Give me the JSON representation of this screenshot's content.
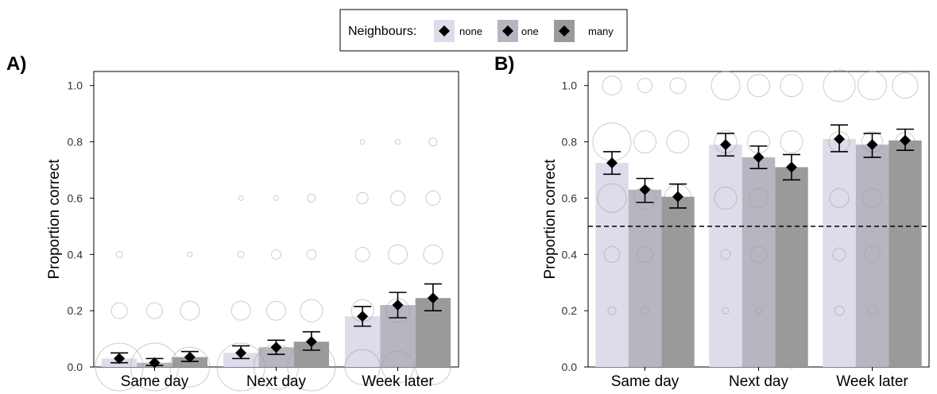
{
  "legend": {
    "title": "Neighbours:",
    "items": [
      {
        "label": "none",
        "color": "#dcdceb"
      },
      {
        "label": "one",
        "color": "#b6b6c0"
      },
      {
        "label": "many",
        "color": "#9a9a9a"
      }
    ]
  },
  "chart_data": [
    {
      "panel_label": "A)",
      "type": "bar",
      "ylabel": "Proportion correct",
      "xlabel": "",
      "ylim": [
        0,
        1.05
      ],
      "yticks": [
        "0.0",
        "0.2",
        "0.4",
        "0.6",
        "0.8",
        "1.0"
      ],
      "ytick_values": [
        0,
        0.2,
        0.4,
        0.6,
        0.8,
        1.0
      ],
      "categories": [
        "Same day",
        "Next day",
        "Week later"
      ],
      "reference_line": null,
      "series": [
        {
          "name": "none",
          "values": [
            0.03,
            0.05,
            0.18
          ],
          "ci_low": [
            0.015,
            0.03,
            0.145
          ],
          "ci_high": [
            0.05,
            0.075,
            0.215
          ]
        },
        {
          "name": "one",
          "values": [
            0.015,
            0.07,
            0.22
          ],
          "ci_low": [
            0.005,
            0.045,
            0.175
          ],
          "ci_high": [
            0.03,
            0.095,
            0.265
          ]
        },
        {
          "name": "many",
          "values": [
            0.035,
            0.09,
            0.245
          ],
          "ci_low": [
            0.02,
            0.06,
            0.2
          ],
          "ci_high": [
            0.055,
            0.125,
            0.295
          ]
        }
      ],
      "bubbles": [
        [
          [
            [
              0.0,
              30
            ],
            [
              0.2,
              10
            ],
            [
              0.4,
              4
            ]
          ],
          [
            [
              0.0,
              30
            ],
            [
              0.2,
              10
            ]
          ],
          [
            [
              0.0,
              25
            ],
            [
              0.2,
              12
            ],
            [
              0.4,
              3
            ]
          ]
        ],
        [
          [
            [
              0.0,
              30
            ],
            [
              0.2,
              12
            ],
            [
              0.4,
              4
            ],
            [
              0.6,
              3
            ]
          ],
          [
            [
              0.0,
              28
            ],
            [
              0.2,
              12
            ],
            [
              0.4,
              6
            ],
            [
              0.6,
              3
            ]
          ],
          [
            [
              0.0,
              30
            ],
            [
              0.2,
              14
            ],
            [
              0.4,
              6
            ],
            [
              0.6,
              5
            ]
          ]
        ],
        [
          [
            [
              0.0,
              22
            ],
            [
              0.2,
              14
            ],
            [
              0.4,
              9
            ],
            [
              0.6,
              7
            ],
            [
              0.8,
              3
            ]
          ],
          [
            [
              0.0,
              20
            ],
            [
              0.2,
              15
            ],
            [
              0.4,
              12
            ],
            [
              0.6,
              9
            ],
            [
              0.8,
              3
            ]
          ],
          [
            [
              0.0,
              22
            ],
            [
              0.2,
              15
            ],
            [
              0.4,
              12
            ],
            [
              0.6,
              9
            ],
            [
              0.8,
              5
            ]
          ]
        ]
      ]
    },
    {
      "panel_label": "B)",
      "type": "bar",
      "ylabel": "Proportion correct",
      "xlabel": "",
      "ylim": [
        0,
        1.05
      ],
      "yticks": [
        "0.0",
        "0.2",
        "0.4",
        "0.6",
        "0.8",
        "1.0"
      ],
      "ytick_values": [
        0,
        0.2,
        0.4,
        0.6,
        0.8,
        1.0
      ],
      "categories": [
        "Same day",
        "Next day",
        "Week later"
      ],
      "reference_line": 0.5,
      "series": [
        {
          "name": "none",
          "values": [
            0.725,
            0.79,
            0.81
          ],
          "ci_low": [
            0.685,
            0.75,
            0.765
          ],
          "ci_high": [
            0.765,
            0.83,
            0.86
          ]
        },
        {
          "name": "one",
          "values": [
            0.63,
            0.745,
            0.79
          ],
          "ci_low": [
            0.585,
            0.705,
            0.745
          ],
          "ci_high": [
            0.67,
            0.785,
            0.83
          ]
        },
        {
          "name": "many",
          "values": [
            0.605,
            0.71,
            0.805
          ],
          "ci_low": [
            0.565,
            0.665,
            0.77
          ],
          "ci_high": [
            0.65,
            0.755,
            0.845
          ]
        }
      ],
      "bubbles": [
        [
          [
            [
              1.0,
              12
            ],
            [
              0.8,
              24
            ],
            [
              0.6,
              18
            ],
            [
              0.4,
              10
            ],
            [
              0.2,
              5
            ]
          ],
          [
            [
              1.0,
              9
            ],
            [
              0.8,
              14
            ],
            [
              0.6,
              14
            ],
            [
              0.4,
              10
            ],
            [
              0.2,
              5
            ],
            [
              0.0,
              2
            ]
          ],
          [
            [
              1.0,
              10
            ],
            [
              0.8,
              14
            ],
            [
              0.6,
              17
            ],
            [
              0.4,
              16
            ],
            [
              0.2,
              7
            ]
          ]
        ],
        [
          [
            [
              1.0,
              18
            ],
            [
              0.8,
              14
            ],
            [
              0.6,
              14
            ],
            [
              0.4,
              6
            ],
            [
              0.2,
              4
            ]
          ],
          [
            [
              1.0,
              14
            ],
            [
              0.8,
              14
            ],
            [
              0.6,
              12
            ],
            [
              0.4,
              10
            ],
            [
              0.2,
              4
            ]
          ],
          [
            [
              1.0,
              14
            ],
            [
              0.8,
              14
            ],
            [
              0.6,
              17
            ],
            [
              0.4,
              8
            ],
            [
              0.2,
              9
            ],
            [
              0.0,
              2
            ]
          ]
        ],
        [
          [
            [
              1.0,
              20
            ],
            [
              0.8,
              13
            ],
            [
              0.6,
              12
            ],
            [
              0.4,
              8
            ],
            [
              0.2,
              6
            ]
          ],
          [
            [
              1.0,
              18
            ],
            [
              0.8,
              13
            ],
            [
              0.6,
              12
            ],
            [
              0.4,
              10
            ],
            [
              0.2,
              6
            ]
          ],
          [
            [
              1.0,
              16
            ],
            [
              0.8,
              12
            ],
            [
              0.6,
              13
            ],
            [
              0.4,
              5
            ],
            [
              0.2,
              5
            ]
          ]
        ]
      ]
    }
  ]
}
